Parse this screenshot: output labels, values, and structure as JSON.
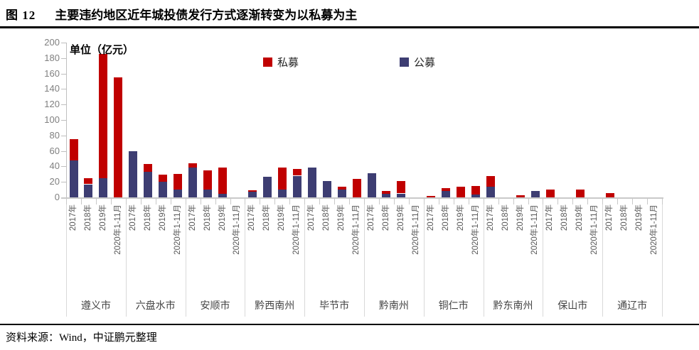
{
  "header": {
    "figure_label": "图 12",
    "title": "主要违约地区近年城投债发行方式逐渐转变为以私募为主"
  },
  "footer": {
    "source": "资料来源：Wind，中证鹏元整理"
  },
  "chart_data": {
    "type": "bar",
    "stacked": true,
    "title": "主要违约地区近年城投债发行方式逐渐转变为以私募为主",
    "unit_label": "单位（亿元）",
    "ylim": [
      0,
      200
    ],
    "ytick_step": 20,
    "grid": false,
    "legend_position": "top-center",
    "legend": [
      {
        "name": "私募",
        "key": "private",
        "color": "#C00000"
      },
      {
        "name": "公募",
        "key": "public",
        "color": "#3D3D72"
      }
    ],
    "year_categories": [
      "2017年",
      "2018年",
      "2019年",
      "2020年1-11月"
    ],
    "groups": [
      {
        "city": "遵义市",
        "bars": [
          {
            "year": "2017年",
            "public": 48,
            "private": 27
          },
          {
            "year": "2018年",
            "public": 17,
            "private": 8
          },
          {
            "year": "2019年",
            "public": 25,
            "private": 160
          },
          {
            "year": "2020年1-11月",
            "public": 0,
            "private": 155
          }
        ]
      },
      {
        "city": "六盘水市",
        "bars": [
          {
            "year": "2017年",
            "public": 60,
            "private": 0
          },
          {
            "year": "2018年",
            "public": 33,
            "private": 10
          },
          {
            "year": "2019年",
            "public": 20,
            "private": 9
          },
          {
            "year": "2020年1-11月",
            "public": 10,
            "private": 20
          }
        ]
      },
      {
        "city": "安顺市",
        "bars": [
          {
            "year": "2017年",
            "public": 39,
            "private": 5
          },
          {
            "year": "2018年",
            "public": 10,
            "private": 25
          },
          {
            "year": "2019年",
            "public": 5,
            "private": 34
          },
          {
            "year": "2020年1-11月",
            "public": 0,
            "private": 0
          }
        ]
      },
      {
        "city": "黔西南州",
        "bars": [
          {
            "year": "2017年",
            "public": 7,
            "private": 2
          },
          {
            "year": "2018年",
            "public": 27,
            "private": 0
          },
          {
            "year": "2019年",
            "public": 10,
            "private": 29
          },
          {
            "year": "2020年1-11月",
            "public": 28,
            "private": 9
          }
        ]
      },
      {
        "city": "毕节市",
        "bars": [
          {
            "year": "2017年",
            "public": 39,
            "private": 0
          },
          {
            "year": "2018年",
            "public": 21,
            "private": 0
          },
          {
            "year": "2019年",
            "public": 10,
            "private": 4
          },
          {
            "year": "2020年1-11月",
            "public": 0,
            "private": 24
          }
        ]
      },
      {
        "city": "黔南州",
        "bars": [
          {
            "year": "2017年",
            "public": 31,
            "private": 0
          },
          {
            "year": "2018年",
            "public": 5,
            "private": 3
          },
          {
            "year": "2019年",
            "public": 5,
            "private": 16
          },
          {
            "year": "2020年1-11月",
            "public": 0,
            "private": 0
          }
        ]
      },
      {
        "city": "铜仁市",
        "bars": [
          {
            "year": "2017年",
            "public": 0,
            "private": 2
          },
          {
            "year": "2018年",
            "public": 8,
            "private": 4
          },
          {
            "year": "2019年",
            "public": 0,
            "private": 14
          },
          {
            "year": "2020年1-11月",
            "public": 4,
            "private": 11
          }
        ]
      },
      {
        "city": "黔东南州",
        "bars": [
          {
            "year": "2017年",
            "public": 14,
            "private": 14
          },
          {
            "year": "2018年",
            "public": 0,
            "private": 0
          },
          {
            "year": "2019年",
            "public": 0,
            "private": 3
          },
          {
            "year": "2020年1-11月",
            "public": 8,
            "private": 0
          }
        ]
      },
      {
        "city": "保山市",
        "bars": [
          {
            "year": "2017年",
            "public": 0,
            "private": 10
          },
          {
            "year": "2018年",
            "public": 0,
            "private": 0
          },
          {
            "year": "2019年",
            "public": 0,
            "private": 10
          },
          {
            "year": "2020年1-11月",
            "public": 0,
            "private": 0
          }
        ]
      },
      {
        "city": "通辽市",
        "bars": [
          {
            "year": "2017年",
            "public": 0,
            "private": 6
          },
          {
            "year": "2018年",
            "public": 0,
            "private": 0
          },
          {
            "year": "2019年",
            "public": 0,
            "private": 0
          },
          {
            "year": "2020年1-11月",
            "public": 0,
            "private": 0
          }
        ]
      }
    ]
  }
}
